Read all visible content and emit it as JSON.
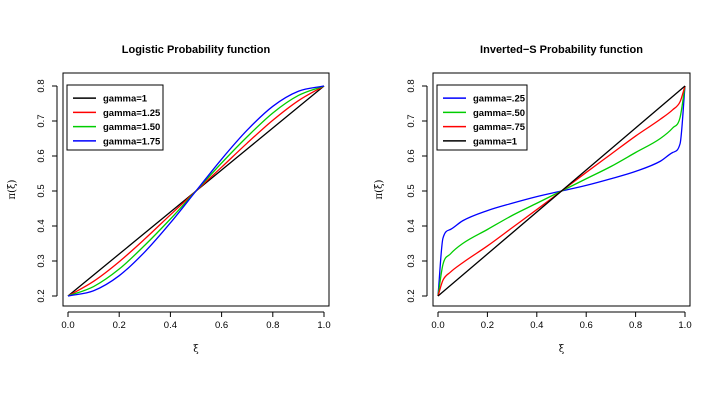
{
  "chart_data": [
    {
      "type": "line",
      "id": "logistic",
      "title": "Logistic Probability function",
      "xlabel": "ξ",
      "ylabel": "π(ξ)",
      "xlim": [
        0,
        1
      ],
      "ylim": [
        0.2,
        0.8
      ],
      "xticks": [
        "0.0",
        "0.2",
        "0.4",
        "0.6",
        "0.8",
        "1.0"
      ],
      "yticks": [
        "0.2",
        "0.3",
        "0.4",
        "0.5",
        "0.6",
        "0.7",
        "0.8"
      ],
      "legend_position": "top-left",
      "series": [
        {
          "name": "gamma=1",
          "color": "#000000",
          "x": [
            0,
            0.1,
            0.2,
            0.3,
            0.4,
            0.5,
            0.6,
            0.7,
            0.8,
            0.9,
            1
          ],
          "y": [
            0.2,
            0.26,
            0.32,
            0.38,
            0.44,
            0.5,
            0.56,
            0.62,
            0.68,
            0.74,
            0.8
          ]
        },
        {
          "name": "gamma=1.25",
          "color": "#ff0000",
          "x": [
            0,
            0.1,
            0.2,
            0.3,
            0.4,
            0.5,
            0.6,
            0.7,
            0.8,
            0.9,
            1
          ],
          "y": [
            0.2,
            0.242,
            0.298,
            0.363,
            0.432,
            0.5,
            0.568,
            0.637,
            0.702,
            0.758,
            0.8
          ]
        },
        {
          "name": "gamma=1.50",
          "color": "#00cd00",
          "x": [
            0,
            0.1,
            0.2,
            0.3,
            0.4,
            0.5,
            0.6,
            0.7,
            0.8,
            0.9,
            1
          ],
          "y": [
            0.2,
            0.227,
            0.277,
            0.345,
            0.42,
            0.5,
            0.58,
            0.655,
            0.723,
            0.773,
            0.8
          ]
        },
        {
          "name": "gamma=1.75",
          "color": "#0000ff",
          "x": [
            0,
            0.1,
            0.2,
            0.3,
            0.4,
            0.5,
            0.6,
            0.7,
            0.8,
            0.9,
            1
          ],
          "y": [
            0.2,
            0.215,
            0.258,
            0.326,
            0.409,
            0.5,
            0.591,
            0.674,
            0.742,
            0.785,
            0.8
          ]
        }
      ]
    },
    {
      "type": "line",
      "id": "inverted-s",
      "title": "Inverted−S Probability function",
      "xlabel": "ξ",
      "ylabel": "π(ξ)",
      "xlim": [
        0,
        1
      ],
      "ylim": [
        0.2,
        0.8
      ],
      "xticks": [
        "0.0",
        "0.2",
        "0.4",
        "0.6",
        "0.8",
        "1.0"
      ],
      "yticks": [
        "0.2",
        "0.3",
        "0.4",
        "0.5",
        "0.6",
        "0.7",
        "0.8"
      ],
      "legend_position": "top-left",
      "series": [
        {
          "name": "gamma=.25",
          "color": "#0000ff",
          "x": [
            0,
            0.02,
            0.05,
            0.1,
            0.2,
            0.3,
            0.4,
            0.5,
            0.6,
            0.7,
            0.8,
            0.9,
            0.95,
            0.98,
            1
          ],
          "y": [
            0.2,
            0.365,
            0.39,
            0.415,
            0.444,
            0.465,
            0.484,
            0.5,
            0.516,
            0.535,
            0.556,
            0.585,
            0.61,
            0.635,
            0.8
          ]
        },
        {
          "name": "gamma=.50",
          "color": "#00cd00",
          "x": [
            0,
            0.02,
            0.05,
            0.1,
            0.2,
            0.3,
            0.4,
            0.5,
            0.6,
            0.7,
            0.8,
            0.9,
            0.95,
            0.98,
            1
          ],
          "y": [
            0.2,
            0.29,
            0.32,
            0.35,
            0.39,
            0.43,
            0.465,
            0.5,
            0.535,
            0.57,
            0.61,
            0.65,
            0.68,
            0.71,
            0.8
          ]
        },
        {
          "name": "gamma=.75",
          "color": "#ff0000",
          "x": [
            0,
            0.02,
            0.05,
            0.1,
            0.2,
            0.3,
            0.4,
            0.5,
            0.6,
            0.7,
            0.8,
            0.9,
            0.95,
            0.98,
            1
          ],
          "y": [
            0.2,
            0.245,
            0.268,
            0.295,
            0.343,
            0.395,
            0.447,
            0.5,
            0.553,
            0.605,
            0.657,
            0.705,
            0.732,
            0.755,
            0.8
          ]
        },
        {
          "name": "gamma=1",
          "color": "#000000",
          "x": [
            0,
            1
          ],
          "y": [
            0.2,
            0.8
          ]
        }
      ]
    }
  ]
}
